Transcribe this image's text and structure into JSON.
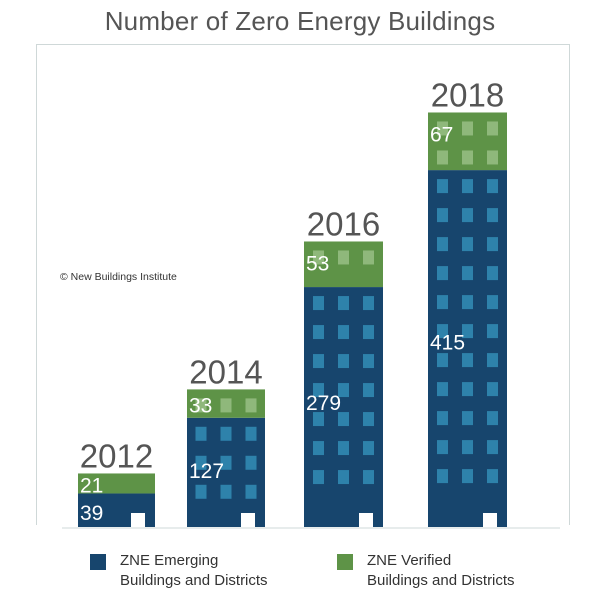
{
  "title": "Number of Zero Energy Buildings",
  "copyright": "© New Buildings Institute",
  "colors": {
    "emerging": "#17456d",
    "verified": "#5e9347",
    "window_emerging": "#2e82ab",
    "window_verified": "#8fb87b",
    "door": "#ffffff",
    "frame": "#cfd8d8"
  },
  "legend": [
    {
      "series": "ZNE Emerging",
      "line1": "ZNE Emerging",
      "line2": "Buildings and Districts",
      "color": "#17456d"
    },
    {
      "series": "ZNE Verified",
      "line1": "ZNE Verified",
      "line2": "Buildings and Districts",
      "color": "#5e9347"
    }
  ],
  "chart_data": {
    "type": "bar",
    "stacked": true,
    "title": "Number of Zero Energy Buildings",
    "categories": [
      "2012",
      "2014",
      "2016",
      "2018"
    ],
    "series": [
      {
        "name": "ZNE Emerging Buildings and Districts",
        "values": [
          39,
          127,
          279,
          415
        ]
      },
      {
        "name": "ZNE Verified Buildings and Districts",
        "values": [
          21,
          33,
          53,
          67
        ]
      }
    ],
    "legend_position": "bottom",
    "grid": false
  }
}
